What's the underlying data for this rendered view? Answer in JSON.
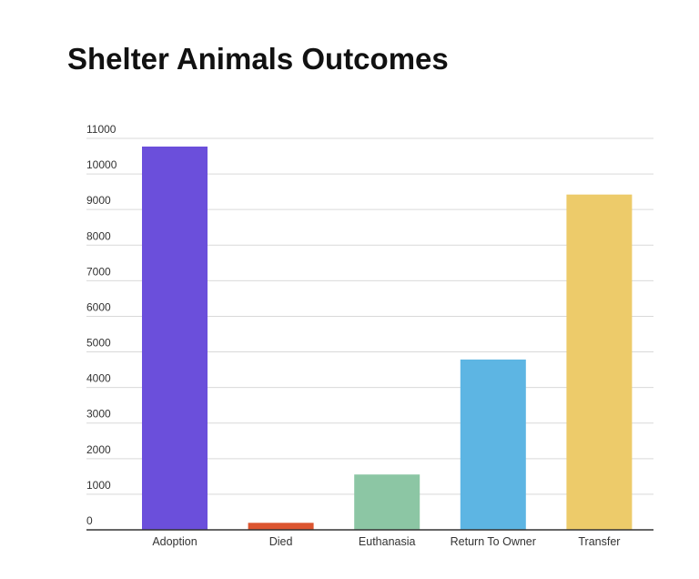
{
  "chart_data": {
    "type": "bar",
    "title": "Shelter Animals Outcomes",
    "xlabel": "",
    "ylabel": "",
    "categories": [
      "Adoption",
      "Died",
      "Euthanasia",
      "Return To Owner",
      "Transfer"
    ],
    "values": [
      10770,
      197,
      1555,
      4786,
      9422
    ],
    "colors": [
      "#6b4fdb",
      "#dc5530",
      "#8cc6a4",
      "#5db5e3",
      "#edcb6a"
    ],
    "ylim": [
      0,
      11000
    ],
    "yticks": [
      "0",
      "1000",
      "2000",
      "3000",
      "4000",
      "5000",
      "6000",
      "7000",
      "8000",
      "9000",
      "10000",
      "11000"
    ],
    "grid": true,
    "legend": "none"
  }
}
